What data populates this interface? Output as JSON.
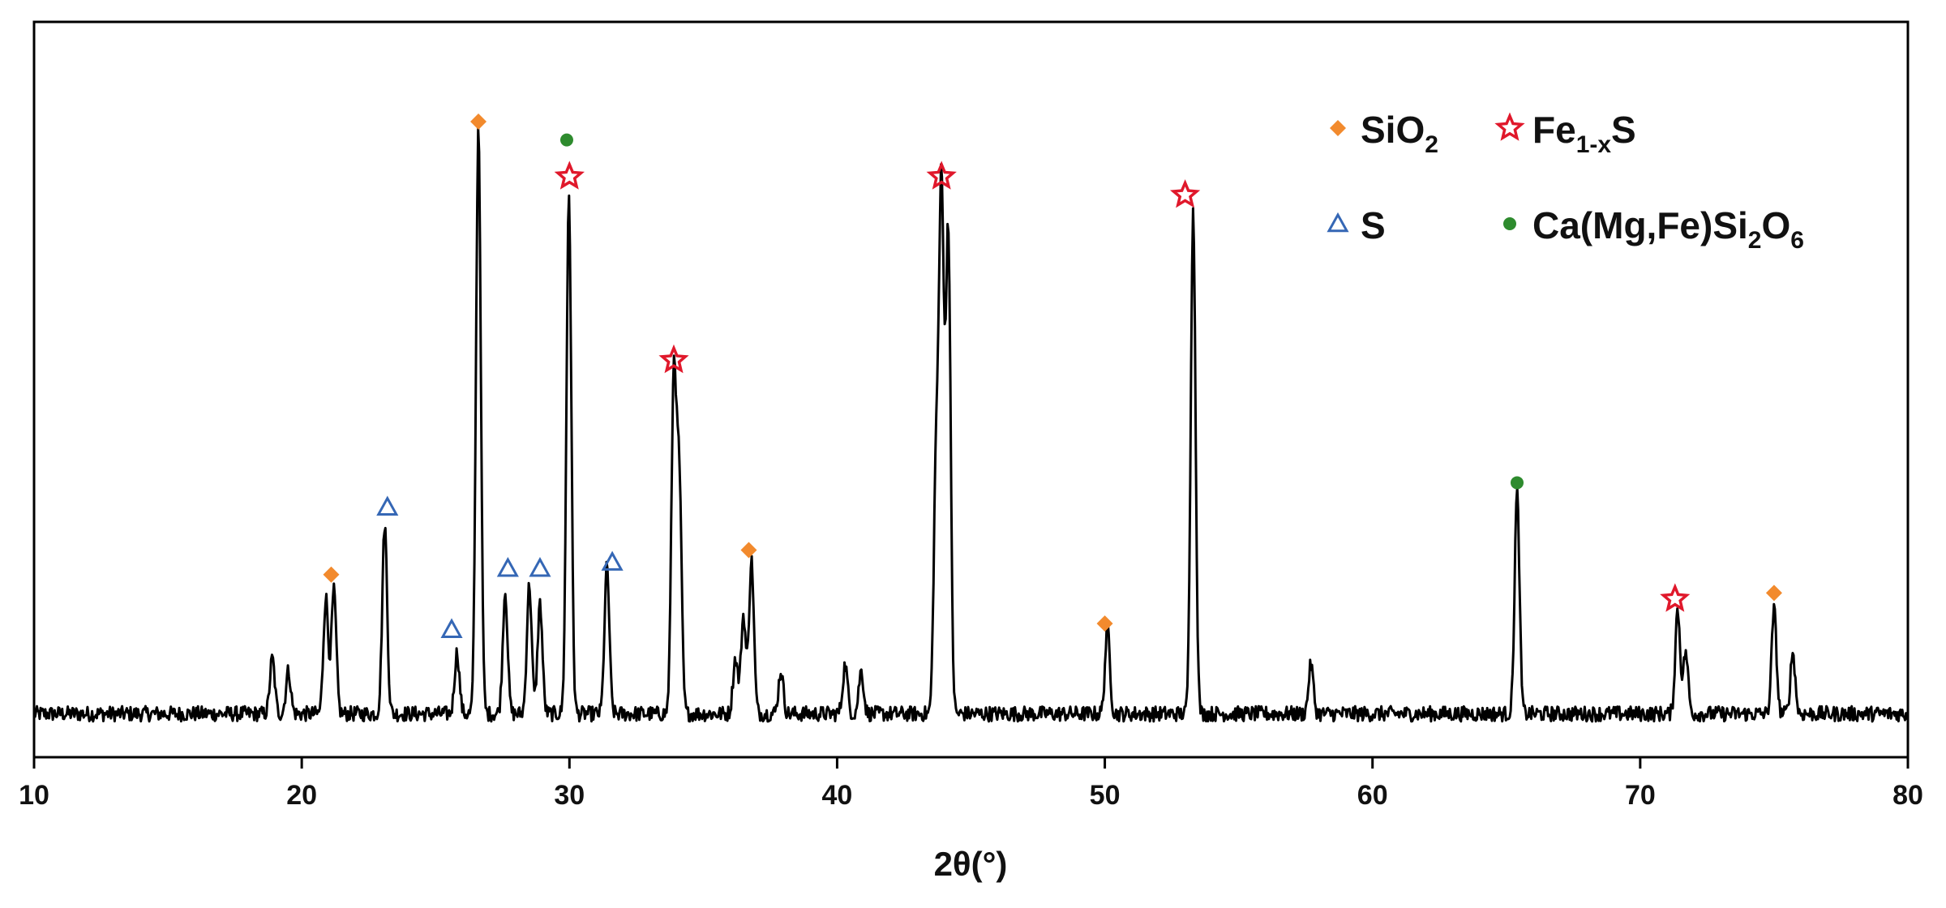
{
  "chart_data": {
    "type": "line",
    "title": "",
    "xlabel": "2θ(°)",
    "ylabel": "",
    "xlim": [
      10,
      80
    ],
    "x_ticks": [
      10,
      20,
      30,
      40,
      50,
      60,
      70,
      80
    ],
    "y_ticks_shown": false,
    "grid": false,
    "legend_position": "top-right",
    "series": [
      {
        "type": "line",
        "color": "#000000",
        "baseline": 0.02,
        "noise_amplitude": 0.025,
        "peaks": [
          {
            "x": 18.9,
            "y": 0.09
          },
          {
            "x": 19.5,
            "y": 0.07
          },
          {
            "x": 20.9,
            "y": 0.19
          },
          {
            "x": 21.2,
            "y": 0.2
          },
          {
            "x": 23.1,
            "y": 0.31
          },
          {
            "x": 25.8,
            "y": 0.1
          },
          {
            "x": 26.6,
            "y": 0.96
          },
          {
            "x": 27.6,
            "y": 0.2
          },
          {
            "x": 28.5,
            "y": 0.21
          },
          {
            "x": 28.9,
            "y": 0.18
          },
          {
            "x": 29.98,
            "y": 0.85
          },
          {
            "x": 31.4,
            "y": 0.24
          },
          {
            "x": 33.9,
            "y": 0.55
          },
          {
            "x": 34.1,
            "y": 0.38
          },
          {
            "x": 36.2,
            "y": 0.09
          },
          {
            "x": 36.5,
            "y": 0.16
          },
          {
            "x": 36.8,
            "y": 0.25
          },
          {
            "x": 37.9,
            "y": 0.07
          },
          {
            "x": 40.3,
            "y": 0.08
          },
          {
            "x": 40.9,
            "y": 0.07
          },
          {
            "x": 43.7,
            "y": 0.41
          },
          {
            "x": 43.9,
            "y": 0.85
          },
          {
            "x": 44.15,
            "y": 0.79
          },
          {
            "x": 50.1,
            "y": 0.14
          },
          {
            "x": 53.3,
            "y": 0.82
          },
          {
            "x": 57.7,
            "y": 0.08
          },
          {
            "x": 65.4,
            "y": 0.36
          },
          {
            "x": 71.4,
            "y": 0.17
          },
          {
            "x": 71.7,
            "y": 0.1
          },
          {
            "x": 75.0,
            "y": 0.17
          },
          {
            "x": 75.7,
            "y": 0.1
          }
        ]
      }
    ],
    "phase_markers": [
      {
        "phase": "SiO2",
        "shape": "diamond",
        "color": "#f28a2d",
        "x": 21.1,
        "y": 0.26
      },
      {
        "phase": "SiO2",
        "shape": "diamond",
        "color": "#f28a2d",
        "x": 26.6,
        "y": 1.0
      },
      {
        "phase": "SiO2",
        "shape": "diamond",
        "color": "#f28a2d",
        "x": 36.7,
        "y": 0.3
      },
      {
        "phase": "SiO2",
        "shape": "diamond",
        "color": "#f28a2d",
        "x": 50.0,
        "y": 0.18
      },
      {
        "phase": "SiO2",
        "shape": "diamond",
        "color": "#f28a2d",
        "x": 75.0,
        "y": 0.23
      },
      {
        "phase": "S",
        "shape": "triangle",
        "color": "#3567b5",
        "x": 23.2,
        "y": 0.37
      },
      {
        "phase": "S",
        "shape": "triangle",
        "color": "#3567b5",
        "x": 25.6,
        "y": 0.17
      },
      {
        "phase": "S",
        "shape": "triangle",
        "color": "#3567b5",
        "x": 27.7,
        "y": 0.27
      },
      {
        "phase": "S",
        "shape": "triangle",
        "color": "#3567b5",
        "x": 28.9,
        "y": 0.27
      },
      {
        "phase": "S",
        "shape": "triangle",
        "color": "#3567b5",
        "x": 31.6,
        "y": 0.28
      },
      {
        "phase": "Fe1-xS",
        "shape": "star",
        "color": "#e0182b",
        "x": 30.0,
        "y": 0.91
      },
      {
        "phase": "Fe1-xS",
        "shape": "star",
        "color": "#e0182b",
        "x": 33.9,
        "y": 0.61
      },
      {
        "phase": "Fe1-xS",
        "shape": "star",
        "color": "#e0182b",
        "x": 43.9,
        "y": 0.91
      },
      {
        "phase": "Fe1-xS",
        "shape": "star",
        "color": "#e0182b",
        "x": 53.0,
        "y": 0.88
      },
      {
        "phase": "Fe1-xS",
        "shape": "star",
        "color": "#e0182b",
        "x": 71.3,
        "y": 0.22
      },
      {
        "phase": "Ca(Mg,Fe)Si2O6",
        "shape": "circle",
        "color": "#2e8b2e",
        "x": 29.9,
        "y": 0.97
      },
      {
        "phase": "Ca(Mg,Fe)Si2O6",
        "shape": "circle",
        "color": "#2e8b2e",
        "x": 65.4,
        "y": 0.41
      }
    ],
    "legend": [
      {
        "key": "SiO2",
        "label": "SiO",
        "sub": "2",
        "suffix": "",
        "shape": "diamond",
        "color": "#f28a2d"
      },
      {
        "key": "Fe1-xS",
        "label": "Fe",
        "sub": "1-x",
        "suffix": "S",
        "shape": "star",
        "color": "#e0182b"
      },
      {
        "key": "S",
        "label": "S",
        "sub": "",
        "suffix": "",
        "shape": "triangle",
        "color": "#3567b5"
      },
      {
        "key": "Ca(Mg,Fe)Si2O6",
        "label": "Ca(Mg,Fe)Si",
        "sub": "2",
        "suffix": "O",
        "sub2": "6",
        "shape": "circle",
        "color": "#2e8b2e"
      }
    ]
  }
}
